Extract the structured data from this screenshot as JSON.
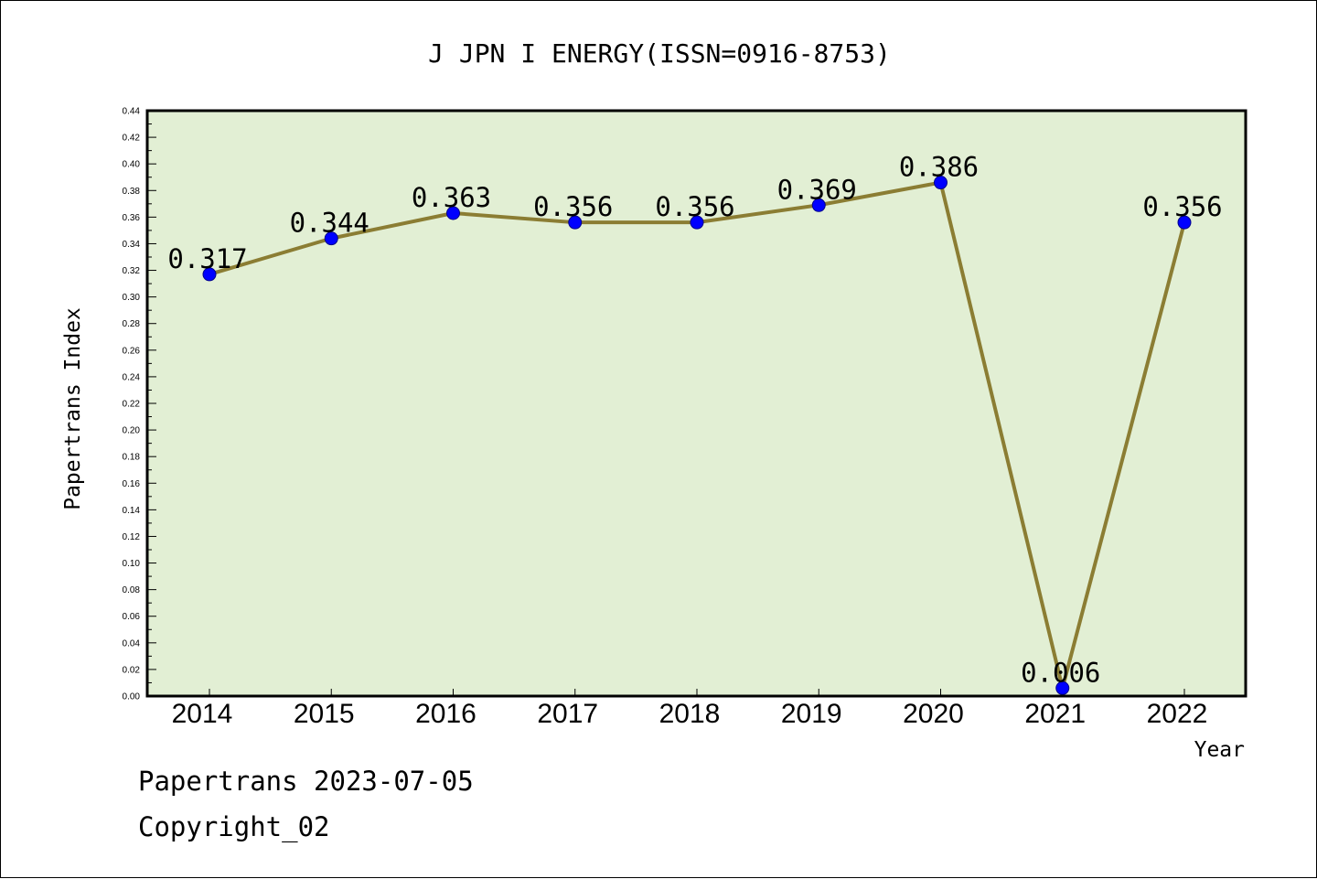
{
  "chart_data": {
    "type": "line",
    "title": "J JPN I ENERGY(ISSN=0916-8753)",
    "xlabel": "Year",
    "ylabel": "Papertrans Index",
    "categories": [
      "2014",
      "2015",
      "2016",
      "2017",
      "2018",
      "2019",
      "2020",
      "2021",
      "2022"
    ],
    "series": [
      {
        "values": [
          0.317,
          0.344,
          0.363,
          0.356,
          0.356,
          0.369,
          0.386,
          0.006,
          0.356
        ],
        "labels": [
          "0.317",
          "0.344",
          "0.363",
          "0.356",
          "0.356",
          "0.369",
          "0.386",
          "0.006",
          "0.356"
        ]
      }
    ],
    "ylim": [
      0,
      0.44
    ],
    "ytick_step": 0.02,
    "yticks": [
      "0.00",
      "0.02",
      "0.04",
      "0.06",
      "0.08",
      "0.10",
      "0.12",
      "0.14",
      "0.16",
      "0.18",
      "0.20",
      "0.22",
      "0.24",
      "0.26",
      "0.28",
      "0.30",
      "0.32",
      "0.34",
      "0.36",
      "0.38",
      "0.40",
      "0.42",
      "0.44"
    ],
    "grid": false,
    "legend": "none",
    "colors": {
      "plot_background": "#e2efd4",
      "line": "#8b7d33",
      "marker": "#0000ff",
      "axis": "#000000"
    }
  },
  "footer": {
    "line1": "Papertrans 2023-07-05",
    "line2": "Copyright_02"
  }
}
